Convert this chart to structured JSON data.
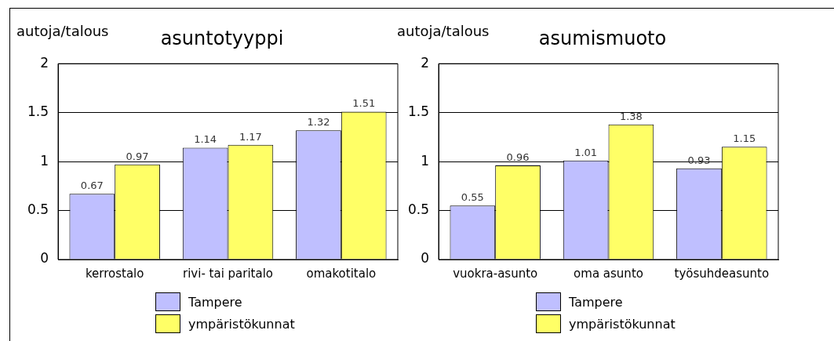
{
  "chart_data": [
    {
      "type": "bar",
      "title": "asuntotyyppi",
      "ylabel": "autoja/talous",
      "categories": [
        "kerrostalo",
        "rivi- tai paritalo",
        "omakotitalo"
      ],
      "series": [
        {
          "name": "Tampere",
          "color": "#bfbfff",
          "values": [
            0.67,
            1.14,
            1.32
          ]
        },
        {
          "name": "ympäristökunnat",
          "color": "#ffff66",
          "values": [
            0.97,
            1.17,
            1.51
          ]
        }
      ],
      "ylim": [
        0,
        2
      ],
      "yticks": [
        0,
        0.5,
        1,
        1.5,
        2
      ],
      "grid": "y",
      "legend": "bottom",
      "data_labels": true
    },
    {
      "type": "bar",
      "title": "asumismuoto",
      "ylabel": "autoja/talous",
      "categories": [
        "vuokra-asunto",
        "oma asunto",
        "työsuhdeasunto"
      ],
      "series": [
        {
          "name": "Tampere",
          "color": "#bfbfff",
          "values": [
            0.55,
            1.01,
            0.93
          ]
        },
        {
          "name": "ympäristökunnat",
          "color": "#ffff66",
          "values": [
            0.96,
            1.38,
            1.15
          ]
        }
      ],
      "ylim": [
        0,
        2
      ],
      "yticks": [
        0,
        0.5,
        1,
        1.5,
        2
      ],
      "grid": "y",
      "legend": "bottom",
      "data_labels": true
    }
  ]
}
